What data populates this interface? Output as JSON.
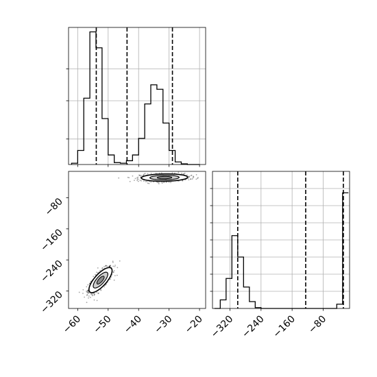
{
  "chart_data": [
    {
      "panel": "marginal-x",
      "type": "histogram",
      "xlim": [
        -63,
        -18
      ],
      "bins": [
        -62.0,
        -60.0,
        -58.0,
        -56.0,
        -54.0,
        -52.0,
        -50.0,
        -48.0,
        -46.0,
        -44.0,
        -42.0,
        -40.0,
        -38.0,
        -36.0,
        -34.0,
        -32.0,
        -30.0,
        -28.0,
        -26.0,
        -24.0,
        -22.0,
        -20.0
      ],
      "counts": [
        2,
        22,
        104,
        208,
        183,
        72,
        15,
        3,
        2,
        6,
        15,
        41,
        95,
        125,
        118,
        65,
        22,
        4,
        1,
        0,
        0
      ],
      "quantile_lines": [
        -53.9,
        -43.8,
        -28.9
      ],
      "ylim": [
        0,
        215
      ],
      "y_ticks": [
        40,
        100,
        150
      ],
      "grid": true
    },
    {
      "panel": "marginal-y",
      "type": "histogram",
      "xlim": [
        -365,
        -12
      ],
      "bins": [
        -360,
        -345,
        -330,
        -315,
        -300,
        -285,
        -270,
        -255,
        -240,
        -225,
        -210,
        -195,
        -180,
        -165,
        -150,
        -135,
        -120,
        -105,
        -90,
        -75,
        -60,
        -45,
        -30,
        -15
      ],
      "counts": [
        0,
        10,
        35,
        85,
        60,
        25,
        8,
        1,
        0,
        0,
        0,
        0,
        0,
        0,
        0,
        0,
        0,
        0,
        0,
        0,
        0,
        5,
        135
      ],
      "quantile_lines": [
        -300,
        -125,
        -28
      ],
      "x_ticks": [
        -320,
        -240,
        -160,
        -80
      ],
      "x_tick_labels": [
        "−320",
        "−240",
        "−160",
        "−80"
      ],
      "ylim": [
        0,
        160
      ],
      "y_ticks": [
        20,
        40,
        60,
        80,
        100,
        120,
        140
      ],
      "grid": true
    },
    {
      "panel": "joint",
      "type": "scatter",
      "xlim": [
        -63,
        -18
      ],
      "ylim": [
        -365,
        -12
      ],
      "x_ticks": [
        -60,
        -50,
        -40,
        -30,
        -20
      ],
      "x_tick_labels": [
        "−60",
        "−50",
        "−40",
        "−30",
        "−20"
      ],
      "y_ticks": [
        -80,
        -160,
        -240,
        -320
      ],
      "y_tick_labels": [
        "−80",
        "−160",
        "−240",
        "−320"
      ],
      "clusters": [
        {
          "x_mean": -52.5,
          "x_sd": 2.0,
          "y_mean": -292,
          "y_sd": 17,
          "rho": 0.75,
          "n": 650
        },
        {
          "x_mean": -31.5,
          "x_sd": 4.0,
          "y_mean": -28,
          "y_sd": 5,
          "rho": 0.1,
          "n": 600
        }
      ],
      "grid": false
    }
  ]
}
